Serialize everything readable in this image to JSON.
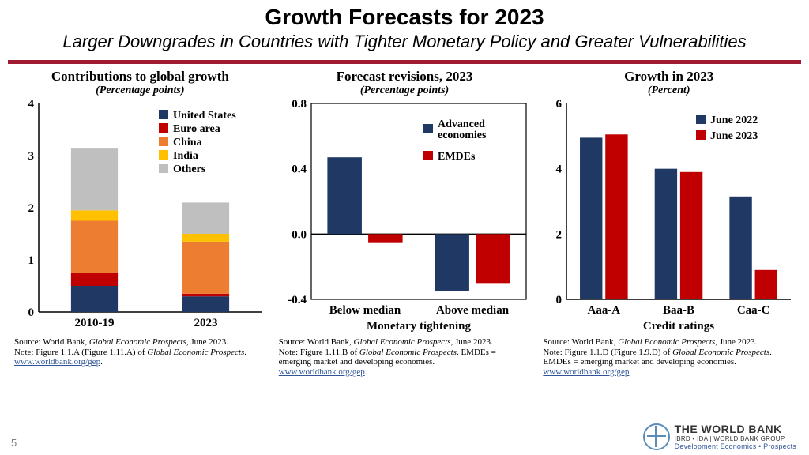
{
  "header": {
    "title": "Growth Forecasts for 2023",
    "subtitle": "Larger Downgrades in Countries with Tighter Monetary Policy and Greater Vulnerabilities"
  },
  "rule_color": "#9e1b32",
  "colors": {
    "us": "#1f3864",
    "euro": "#c00000",
    "china": "#ed7d31",
    "india": "#ffc000",
    "others": "#bfbfbf",
    "advanced": "#1f3864",
    "emde": "#c00000",
    "june2022": "#1f3864",
    "june2023": "#c00000",
    "axis": "#000000",
    "grid": "#bfbfbf",
    "link": "#2f5597"
  },
  "chart1": {
    "title": "Contributions to global growth",
    "subtitle": "(Percentage points)",
    "type": "stacked-bar",
    "categories": [
      "2010-19",
      "2023"
    ],
    "series": [
      {
        "name": "United States",
        "key": "us",
        "values": [
          0.5,
          0.3
        ]
      },
      {
        "name": "Euro area",
        "key": "euro",
        "values": [
          0.25,
          0.05
        ]
      },
      {
        "name": "China",
        "key": "china",
        "values": [
          1.0,
          1.0
        ]
      },
      {
        "name": "India",
        "key": "india",
        "values": [
          0.2,
          0.15
        ]
      },
      {
        "name": "Others",
        "key": "others",
        "values": [
          1.2,
          0.6
        ]
      }
    ],
    "ylim": [
      0,
      4
    ],
    "ytick_step": 1,
    "legend_pos": "top-right",
    "bar_width": 0.42,
    "source": "Source: World Bank, Global Economic Prospects, June 2023.\nNote: Figure 1.1.A (Figure 1.11.A) of Global Economic Prospects.",
    "link_text": "www.worldbank.org/gep"
  },
  "chart2": {
    "title": "Forecast revisions, 2023",
    "subtitle": "(Percentage points)",
    "type": "grouped-bar",
    "categories": [
      "Below median",
      "Above median"
    ],
    "x_axis_label": "Monetary tightening",
    "series": [
      {
        "name": "Advanced economies",
        "key": "advanced",
        "values": [
          0.47,
          -0.35
        ]
      },
      {
        "name": "EMDEs",
        "key": "emde",
        "values": [
          -0.05,
          -0.3
        ]
      }
    ],
    "ylim": [
      -0.4,
      0.8
    ],
    "yticks": [
      -0.4,
      0.0,
      0.4,
      0.8
    ],
    "bar_width": 0.32,
    "group_gap": 0.06,
    "source": "Source: World Bank, Global Economic Prospects, June 2023.\nNote: Figure 1.11.B of Global Economic Prospects. EMDEs = emerging market and developing economies.",
    "link_text": "www.worldbank.org/gep"
  },
  "chart3": {
    "title": "Growth in 2023",
    "subtitle": "(Percent)",
    "type": "grouped-bar",
    "categories": [
      "Aaa-A",
      "Baa-B",
      "Caa-C"
    ],
    "x_axis_label": "Credit ratings",
    "series": [
      {
        "name": "June 2022",
        "key": "june2022",
        "values": [
          4.95,
          4.0,
          3.15
        ]
      },
      {
        "name": "June 2023",
        "key": "june2023",
        "values": [
          5.05,
          3.9,
          0.9
        ]
      }
    ],
    "ylim": [
      0,
      6
    ],
    "ytick_step": 2,
    "bar_width": 0.3,
    "group_gap": 0.04,
    "source": "Source: World Bank, Global Economic Prospects, June 2023.\nNote: Figure 1.1.D (Figure 1.9.D) of Global Economic Prospects. EMDEs = emerging market and developing economies.",
    "link_text": "www.worldbank.org/gep"
  },
  "footer": {
    "page_number": "5",
    "logo": {
      "line1": "THE WORLD BANK",
      "line2": "IBRD • IDA | WORLD BANK GROUP",
      "line3": "Development Economics • Prospects"
    }
  }
}
